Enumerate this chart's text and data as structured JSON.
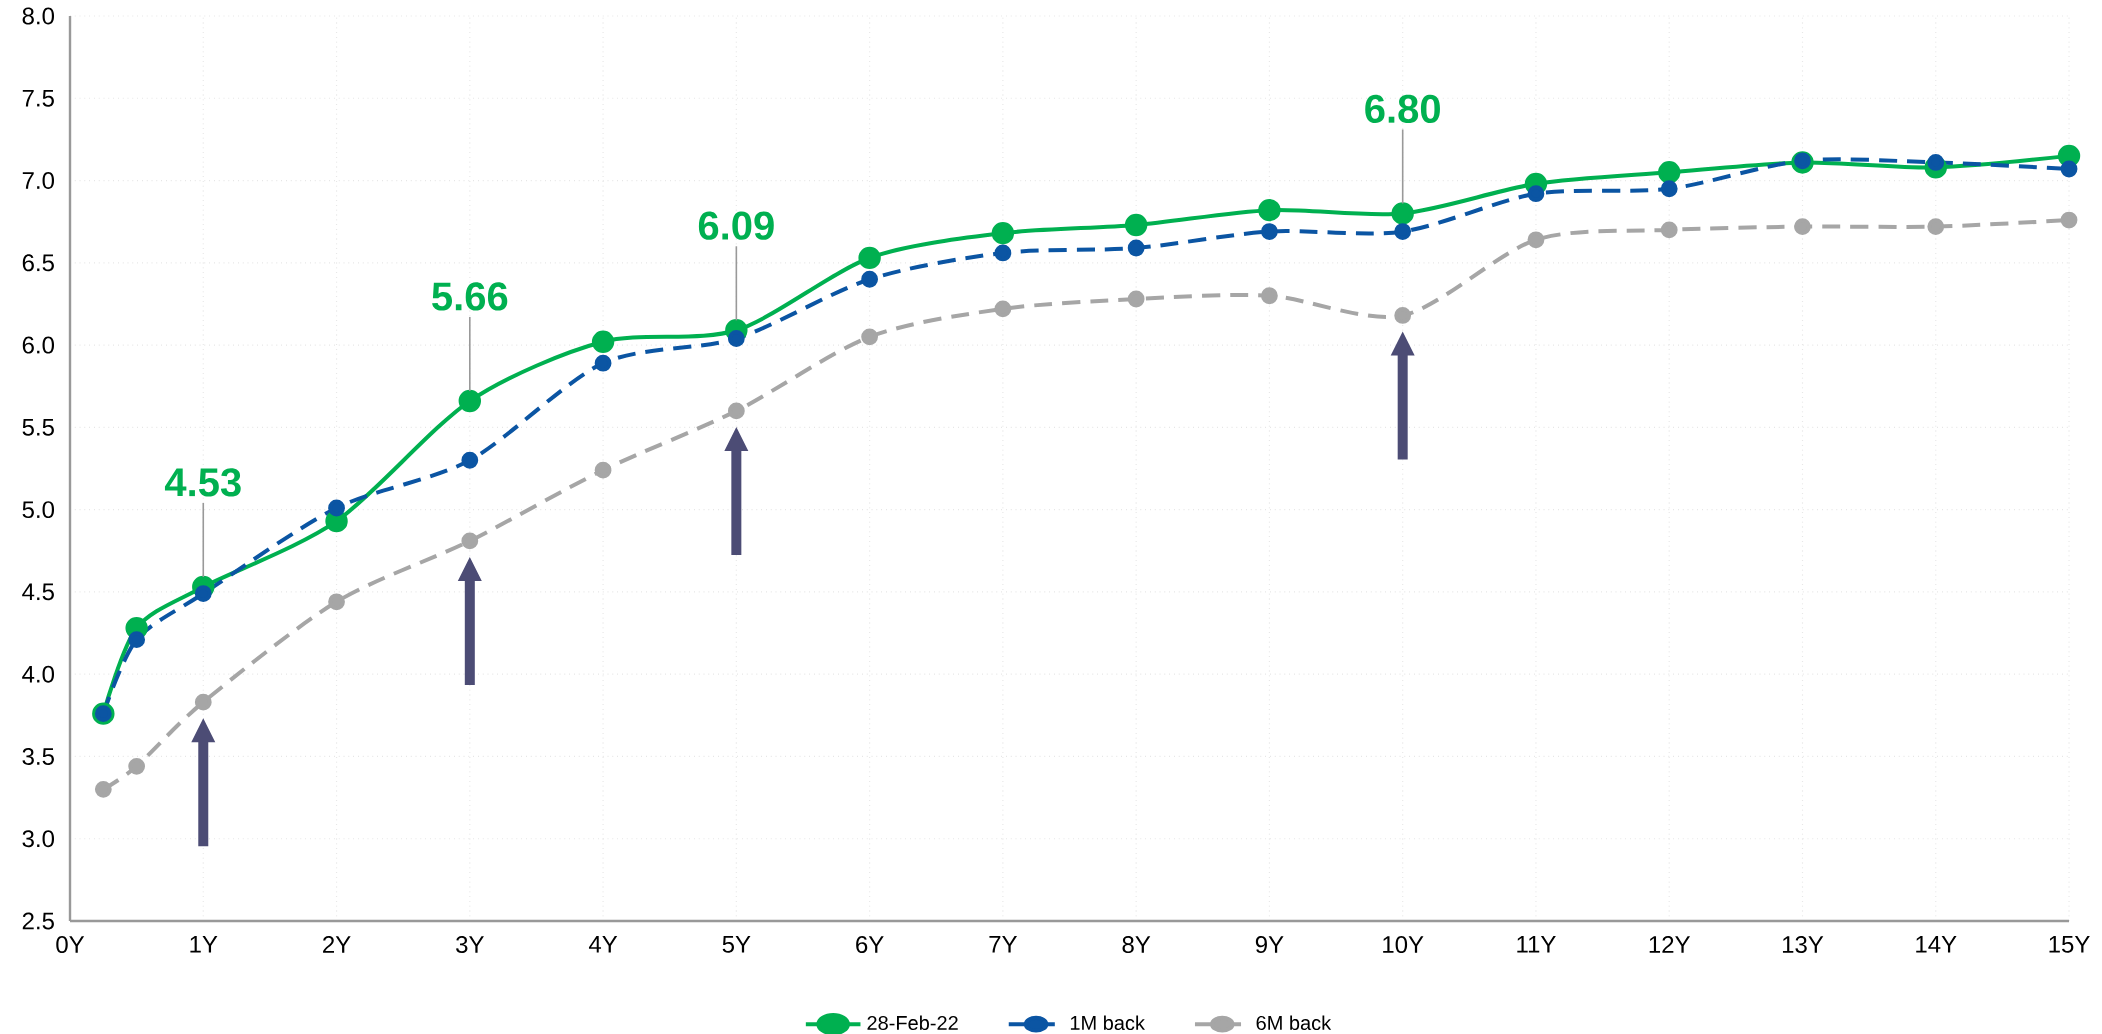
{
  "chart_data": {
    "type": "line",
    "x": [
      0.25,
      0.5,
      1,
      2,
      3,
      4,
      5,
      6,
      7,
      8,
      9,
      10,
      11,
      12,
      13,
      14,
      15
    ],
    "series": [
      {
        "name": "28-Feb-22",
        "color": "#00b050",
        "line_style": "solid",
        "values": [
          3.76,
          4.28,
          4.53,
          4.93,
          5.66,
          6.02,
          6.09,
          6.53,
          6.68,
          6.73,
          6.82,
          6.8,
          6.98,
          7.05,
          7.11,
          7.08,
          7.15
        ]
      },
      {
        "name": "1M back",
        "color": "#0b55a3",
        "line_style": "dashed",
        "values": [
          3.76,
          4.21,
          4.49,
          5.01,
          5.3,
          5.89,
          6.04,
          6.4,
          6.56,
          6.59,
          6.69,
          6.69,
          6.92,
          6.95,
          7.12,
          7.11,
          7.07
        ]
      },
      {
        "name": "6M back",
        "color": "#a6a6a6",
        "line_style": "dashed",
        "values": [
          3.3,
          3.44,
          3.83,
          4.44,
          4.81,
          5.24,
          5.6,
          6.05,
          6.22,
          6.28,
          6.3,
          6.18,
          6.64,
          6.7,
          6.72,
          6.72,
          6.76
        ]
      }
    ],
    "xlim": [
      0,
      15
    ],
    "xticks": [
      {
        "value": 0,
        "label": "0Y"
      },
      {
        "value": 1,
        "label": "1Y"
      },
      {
        "value": 2,
        "label": "2Y"
      },
      {
        "value": 3,
        "label": "3Y"
      },
      {
        "value": 4,
        "label": "4Y"
      },
      {
        "value": 5,
        "label": "5Y"
      },
      {
        "value": 6,
        "label": "6Y"
      },
      {
        "value": 7,
        "label": "7Y"
      },
      {
        "value": 8,
        "label": "8Y"
      },
      {
        "value": 9,
        "label": "9Y"
      },
      {
        "value": 10,
        "label": "10Y"
      },
      {
        "value": 11,
        "label": "11Y"
      },
      {
        "value": 12,
        "label": "12Y"
      },
      {
        "value": 13,
        "label": "13Y"
      },
      {
        "value": 14,
        "label": "14Y"
      },
      {
        "value": 15,
        "label": "15Y"
      }
    ],
    "ylim": [
      2.5,
      8.0
    ],
    "yticks": [
      {
        "value": 2.5,
        "label": "2.5"
      },
      {
        "value": 3.0,
        "label": "3.0"
      },
      {
        "value": 3.5,
        "label": "3.5"
      },
      {
        "value": 4.0,
        "label": "4.0"
      },
      {
        "value": 4.5,
        "label": "4.5"
      },
      {
        "value": 5.0,
        "label": "5.0"
      },
      {
        "value": 5.5,
        "label": "5.5"
      },
      {
        "value": 6.0,
        "label": "6.0"
      },
      {
        "value": 6.5,
        "label": "6.5"
      },
      {
        "value": 7.0,
        "label": "7.0"
      },
      {
        "value": 7.5,
        "label": "7.5"
      },
      {
        "value": 8.0,
        "label": "8.0"
      }
    ],
    "annotations": [
      {
        "text": "4.53",
        "x": 1,
        "y": 4.53
      },
      {
        "text": "5.66",
        "x": 3,
        "y": 5.66
      },
      {
        "text": "6.09",
        "x": 5,
        "y": 6.09
      },
      {
        "text": "6.80",
        "x": 10,
        "y": 6.8
      }
    ],
    "grid": true,
    "legend": "bottom",
    "marker": "circle"
  }
}
